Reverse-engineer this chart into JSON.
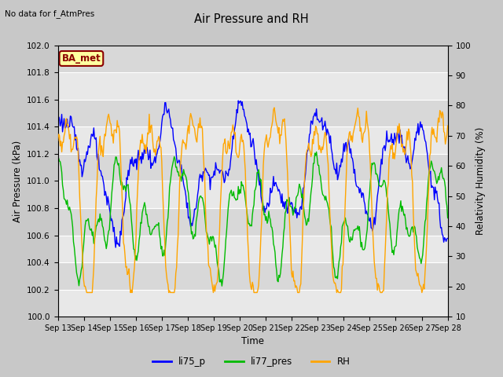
{
  "title": "Air Pressure and RH",
  "top_left_text": "No data for f_AtmPres",
  "annotation_box": "BA_met",
  "xlabel": "Time",
  "ylabel_left": "Air Pressure (kPa)",
  "ylabel_right": "Relativity Humidity (%)",
  "ylim_left": [
    100.0,
    102.0
  ],
  "ylim_right": [
    10,
    100
  ],
  "yticks_left": [
    100.0,
    100.2,
    100.4,
    100.6,
    100.8,
    101.0,
    101.2,
    101.4,
    101.6,
    101.8,
    102.0
  ],
  "yticks_right": [
    10,
    20,
    30,
    40,
    50,
    60,
    70,
    80,
    90,
    100
  ],
  "x_tick_labels": [
    "Sep 13",
    "Sep 14",
    "Sep 15",
    "Sep 16",
    "Sep 17",
    "Sep 18",
    "Sep 19",
    "Sep 20",
    "Sep 21",
    "Sep 22",
    "Sep 23",
    "Sep 24",
    "Sep 25",
    "Sep 26",
    "Sep 27",
    "Sep 28"
  ],
  "color_li75p": "#0000ff",
  "color_li77pres": "#00bb00",
  "color_rh": "#ffa500",
  "fig_facecolor": "#c8c8c8",
  "plot_bg_color": "#e0e0e0",
  "band_color_light": "#e8e8e8",
  "band_color_dark": "#d8d8d8",
  "legend_labels": [
    "li75_p",
    "li77_pres",
    "RH"
  ],
  "grid_color": "#c0c0c0",
  "annotation_box_color": "#8b0000",
  "annotation_box_fill": "#ffffa0"
}
